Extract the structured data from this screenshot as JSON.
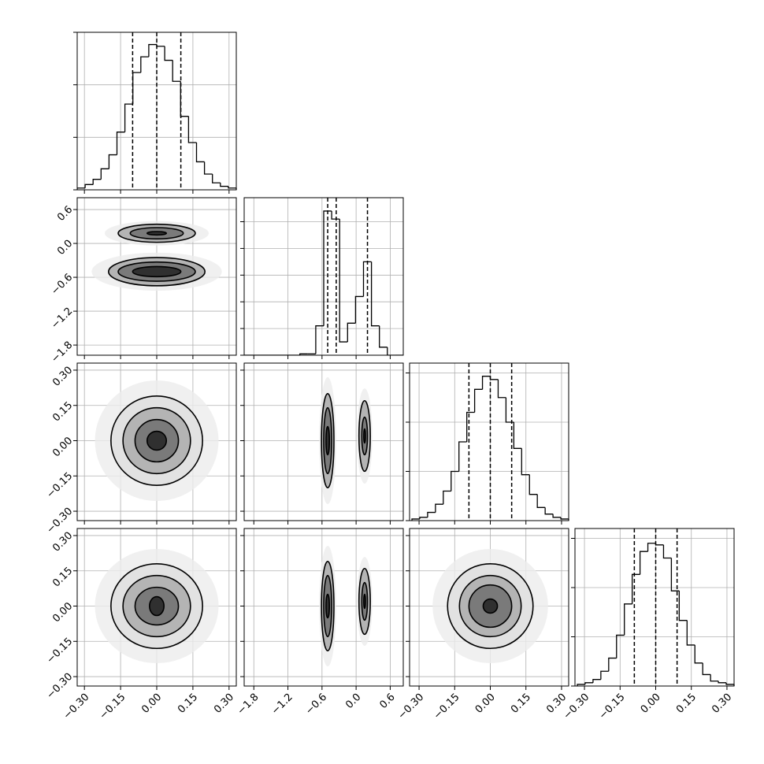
{
  "chart_data": [
    {
      "type": "histogram",
      "color": "#000000",
      "grid": true,
      "bins": [
        -0.33,
        -0.297,
        -0.264,
        -0.231,
        -0.198,
        -0.165,
        -0.132,
        -0.099,
        -0.066,
        -0.033,
        0,
        0.033,
        0.066,
        0.099,
        0.132,
        0.165,
        0.198,
        0.231,
        0.264,
        0.297,
        0.33
      ],
      "values": [
        1,
        3,
        6,
        12,
        20,
        33,
        49,
        67,
        76,
        83,
        82,
        74,
        62,
        42,
        27,
        16,
        9,
        4,
        2,
        1
      ],
      "quantiles": [
        -0.1,
        0.0,
        0.1
      ],
      "xlim": [
        -0.33,
        0.33
      ],
      "ylim": [
        0,
        90
      ],
      "yticks": [
        0,
        30,
        60,
        90
      ],
      "xticks": [
        {
          "value": -0.3,
          "label": "−0.30"
        },
        {
          "value": -0.15,
          "label": "−0.15"
        },
        {
          "value": 0,
          "label": "0.00"
        },
        {
          "value": 0.15,
          "label": "0.15"
        },
        {
          "value": 0.3,
          "label": "0.30"
        }
      ]
    },
    {
      "type": "contour",
      "grid": true,
      "xlim": [
        -0.33,
        0.33
      ],
      "ylim": [
        -1.98,
        0.81
      ],
      "xticks": [
        {
          "value": -0.3,
          "label": "−0.30"
        },
        {
          "value": -0.15,
          "label": "−0.15"
        },
        {
          "value": 0,
          "label": "0.00"
        },
        {
          "value": 0.15,
          "label": "0.15"
        },
        {
          "value": 0.3,
          "label": "0.30"
        }
      ],
      "yticks": [
        {
          "value": -1.8,
          "label": "−1.8"
        },
        {
          "value": -1.2,
          "label": "−1.2"
        },
        {
          "value": -0.6,
          "label": "−0.6"
        },
        {
          "value": 0,
          "label": "0.0"
        },
        {
          "value": 0.6,
          "label": "0.6"
        }
      ],
      "contours": [
        {
          "x": 0.0,
          "y": 0.18,
          "rx": 0.16,
          "ry": 0.16
        },
        {
          "x": 0.0,
          "y": 0.18,
          "rx": 0.11,
          "ry": 0.1
        },
        {
          "x": 0.0,
          "y": 0.18,
          "rx": 0.04,
          "ry": 0.03
        },
        {
          "x": 0.0,
          "y": -0.5,
          "rx": 0.2,
          "ry": 0.25
        },
        {
          "x": 0.0,
          "y": -0.5,
          "rx": 0.16,
          "ry": 0.17
        },
        {
          "x": 0.0,
          "y": -0.5,
          "rx": 0.1,
          "ry": 0.09
        }
      ]
    },
    {
      "type": "histogram",
      "color": "#000000",
      "grid": true,
      "bins": [
        -1.97,
        -1.83,
        -1.69,
        -1.55,
        -1.41,
        -1.27,
        -1.13,
        -0.99,
        -0.85,
        -0.71,
        -0.57,
        -0.43,
        -0.29,
        -0.15,
        -0.01,
        0.13,
        0.27,
        0.41,
        0.55,
        0.69,
        0.83
      ],
      "values": [
        0,
        0,
        0,
        0,
        0,
        0,
        0,
        0.05,
        0.05,
        1.1,
        5.4,
        5.1,
        0.5,
        1.2,
        2.2,
        3.5,
        1.1,
        0.3,
        0,
        0
      ],
      "quantiles": [
        -0.5,
        -0.35,
        0.2
      ],
      "xlim": [
        -1.97,
        0.83
      ],
      "ylim": [
        0,
        5.9
      ],
      "yticks": [
        0,
        1,
        2,
        3,
        4,
        5
      ],
      "xticks": [
        {
          "value": -1.8,
          "label": "−1.8"
        },
        {
          "value": -1.2,
          "label": "−1.2"
        },
        {
          "value": -0.6,
          "label": "−0.6"
        },
        {
          "value": 0,
          "label": "0.0"
        },
        {
          "value": 0.6,
          "label": "0.6"
        }
      ]
    },
    {
      "type": "contour",
      "grid": true,
      "xlim": [
        -0.33,
        0.33
      ],
      "ylim": [
        -0.34,
        0.33
      ],
      "xticks": [
        {
          "value": -0.3,
          "label": "−0.30"
        },
        {
          "value": -0.15,
          "label": "−0.15"
        },
        {
          "value": 0,
          "label": "0.00"
        },
        {
          "value": 0.15,
          "label": "0.15"
        },
        {
          "value": 0.3,
          "label": "0.30"
        }
      ],
      "yticks": [
        {
          "value": -0.3,
          "label": "−0.30"
        },
        {
          "value": -0.15,
          "label": "−0.15"
        },
        {
          "value": 0,
          "label": "0.00"
        },
        {
          "value": 0.15,
          "label": "0.15"
        },
        {
          "value": 0.3,
          "label": "0.30"
        }
      ],
      "contours": [
        {
          "x": 0.0,
          "y": 0.0,
          "rx": 0.19,
          "ry": 0.19
        },
        {
          "x": 0.0,
          "y": 0.0,
          "rx": 0.14,
          "ry": 0.14
        },
        {
          "x": 0.0,
          "y": 0.0,
          "rx": 0.09,
          "ry": 0.09
        },
        {
          "x": 0.0,
          "y": 0.0,
          "rx": 0.04,
          "ry": 0.04
        }
      ]
    },
    {
      "type": "contour",
      "grid": true,
      "xlim": [
        -1.97,
        0.83
      ],
      "ylim": [
        -0.34,
        0.33
      ],
      "xticks": [
        {
          "value": -1.8,
          "label": "−1.8"
        },
        {
          "value": -1.2,
          "label": "−1.2"
        },
        {
          "value": -0.6,
          "label": "−0.6"
        },
        {
          "value": 0,
          "label": "0.0"
        },
        {
          "value": 0.6,
          "label": "0.6"
        }
      ],
      "yticks": [
        {
          "value": -0.3,
          "label": "−0.30"
        },
        {
          "value": -0.15,
          "label": "−0.15"
        },
        {
          "value": 0,
          "label": "0.00"
        },
        {
          "value": 0.15,
          "label": "0.15"
        },
        {
          "value": 0.3,
          "label": "0.30"
        }
      ],
      "contours": [
        {
          "x": -0.5,
          "y": 0.0,
          "rx": 0.11,
          "ry": 0.2
        },
        {
          "x": -0.5,
          "y": 0.0,
          "rx": 0.07,
          "ry": 0.14
        },
        {
          "x": -0.5,
          "y": 0.0,
          "rx": 0.03,
          "ry": 0.06
        },
        {
          "x": 0.15,
          "y": 0.02,
          "rx": 0.1,
          "ry": 0.15
        },
        {
          "x": 0.15,
          "y": 0.02,
          "rx": 0.05,
          "ry": 0.08
        },
        {
          "x": 0.15,
          "y": 0.02,
          "rx": 0.015,
          "ry": 0.03
        }
      ]
    },
    {
      "type": "histogram",
      "color": "#000000",
      "grid": true,
      "bins": [
        -0.33,
        -0.297,
        -0.264,
        -0.231,
        -0.198,
        -0.165,
        -0.132,
        -0.099,
        -0.066,
        -0.033,
        0,
        0.033,
        0.066,
        0.099,
        0.132,
        0.165,
        0.198,
        0.231,
        0.264,
        0.297,
        0.33
      ],
      "values": [
        1,
        2,
        5,
        10,
        18,
        30,
        48,
        66,
        80,
        88,
        86,
        75,
        60,
        44,
        28,
        16,
        8,
        4,
        2,
        1
      ],
      "quantiles": [
        -0.09,
        0.0,
        0.09
      ],
      "xlim": [
        -0.34,
        0.33
      ],
      "ylim": [
        0,
        96
      ],
      "yticks": [
        0,
        30,
        60,
        90
      ],
      "xticks": [
        {
          "value": -0.3,
          "label": "−0.30"
        },
        {
          "value": -0.15,
          "label": "−0.15"
        },
        {
          "value": 0,
          "label": "0.00"
        },
        {
          "value": 0.15,
          "label": "0.15"
        },
        {
          "value": 0.3,
          "label": "0.30"
        }
      ]
    },
    {
      "type": "contour",
      "grid": true,
      "xlim": [
        -0.33,
        0.33
      ],
      "ylim": [
        -0.34,
        0.33
      ],
      "xticks": [
        {
          "value": -0.3,
          "label": "−0.30"
        },
        {
          "value": -0.15,
          "label": "−0.15"
        },
        {
          "value": 0,
          "label": "0.00"
        },
        {
          "value": 0.15,
          "label": "0.15"
        },
        {
          "value": 0.3,
          "label": "0.30"
        }
      ],
      "yticks": [
        {
          "value": -0.3,
          "label": "−0.30"
        },
        {
          "value": -0.15,
          "label": "−0.15"
        },
        {
          "value": 0,
          "label": "0.00"
        },
        {
          "value": 0.15,
          "label": "0.15"
        },
        {
          "value": 0.3,
          "label": "0.30"
        }
      ],
      "contours": [
        {
          "x": 0.0,
          "y": 0.0,
          "rx": 0.19,
          "ry": 0.18
        },
        {
          "x": 0.0,
          "y": 0.0,
          "rx": 0.14,
          "ry": 0.13
        },
        {
          "x": 0.0,
          "y": 0.0,
          "rx": 0.09,
          "ry": 0.08
        },
        {
          "x": 0.0,
          "y": 0.0,
          "rx": 0.03,
          "ry": 0.04
        }
      ]
    },
    {
      "type": "contour",
      "grid": true,
      "xlim": [
        -1.97,
        0.83
      ],
      "ylim": [
        -0.34,
        0.33
      ],
      "xticks": [
        {
          "value": -1.8,
          "label": "−1.8"
        },
        {
          "value": -1.2,
          "label": "−1.2"
        },
        {
          "value": -0.6,
          "label": "−0.6"
        },
        {
          "value": 0,
          "label": "0.0"
        },
        {
          "value": 0.6,
          "label": "0.6"
        }
      ],
      "yticks": [
        {
          "value": -0.3,
          "label": "−0.30"
        },
        {
          "value": -0.15,
          "label": "−0.15"
        },
        {
          "value": 0,
          "label": "0.00"
        },
        {
          "value": 0.15,
          "label": "0.15"
        },
        {
          "value": 0.3,
          "label": "0.30"
        }
      ],
      "contours": [
        {
          "x": -0.5,
          "y": 0.0,
          "rx": 0.11,
          "ry": 0.19
        },
        {
          "x": -0.5,
          "y": 0.0,
          "rx": 0.07,
          "ry": 0.13
        },
        {
          "x": -0.5,
          "y": 0.0,
          "rx": 0.03,
          "ry": 0.05
        },
        {
          "x": 0.15,
          "y": 0.02,
          "rx": 0.1,
          "ry": 0.14
        },
        {
          "x": 0.15,
          "y": 0.02,
          "rx": 0.05,
          "ry": 0.08
        },
        {
          "x": 0.15,
          "y": 0.02,
          "rx": 0.015,
          "ry": 0.03
        }
      ]
    },
    {
      "type": "contour",
      "grid": true,
      "xlim": [
        -0.34,
        0.33
      ],
      "ylim": [
        -0.34,
        0.33
      ],
      "xticks": [
        {
          "value": -0.3,
          "label": "−0.30"
        },
        {
          "value": -0.15,
          "label": "−0.15"
        },
        {
          "value": 0,
          "label": "0.00"
        },
        {
          "value": 0.15,
          "label": "0.15"
        },
        {
          "value": 0.3,
          "label": "0.30"
        }
      ],
      "yticks": [
        {
          "value": -0.3,
          "label": "−0.30"
        },
        {
          "value": -0.15,
          "label": "−0.15"
        },
        {
          "value": 0,
          "label": "0.00"
        },
        {
          "value": 0.15,
          "label": "0.15"
        },
        {
          "value": 0.3,
          "label": "0.30"
        }
      ],
      "contours": [
        {
          "x": 0.0,
          "y": 0.0,
          "rx": 0.18,
          "ry": 0.18
        },
        {
          "x": 0.0,
          "y": 0.0,
          "rx": 0.13,
          "ry": 0.13
        },
        {
          "x": 0.0,
          "y": 0.0,
          "rx": 0.09,
          "ry": 0.09
        },
        {
          "x": 0.0,
          "y": 0.0,
          "rx": 0.03,
          "ry": 0.03
        }
      ]
    },
    {
      "type": "histogram",
      "color": "#000000",
      "grid": true,
      "bins": [
        -0.33,
        -0.297,
        -0.264,
        -0.231,
        -0.198,
        -0.165,
        -0.132,
        -0.099,
        -0.066,
        -0.033,
        0,
        0.033,
        0.066,
        0.099,
        0.132,
        0.165,
        0.198,
        0.231,
        0.264,
        0.297,
        0.33
      ],
      "values": [
        1,
        2,
        4,
        9,
        17,
        31,
        50,
        68,
        82,
        87,
        86,
        78,
        58,
        40,
        25,
        14,
        7,
        3,
        2,
        1
      ],
      "quantiles": [
        -0.09,
        0.0,
        0.09
      ],
      "xlim": [
        -0.34,
        0.33
      ],
      "ylim": [
        0,
        96
      ],
      "yticks": [
        0,
        30,
        60,
        90
      ],
      "xticks": [
        {
          "value": -0.3,
          "label": "−0.30"
        },
        {
          "value": -0.15,
          "label": "−0.15"
        },
        {
          "value": 0,
          "label": "0.00"
        },
        {
          "value": 0.15,
          "label": "0.15"
        },
        {
          "value": 0.3,
          "label": "0.30"
        }
      ]
    }
  ]
}
